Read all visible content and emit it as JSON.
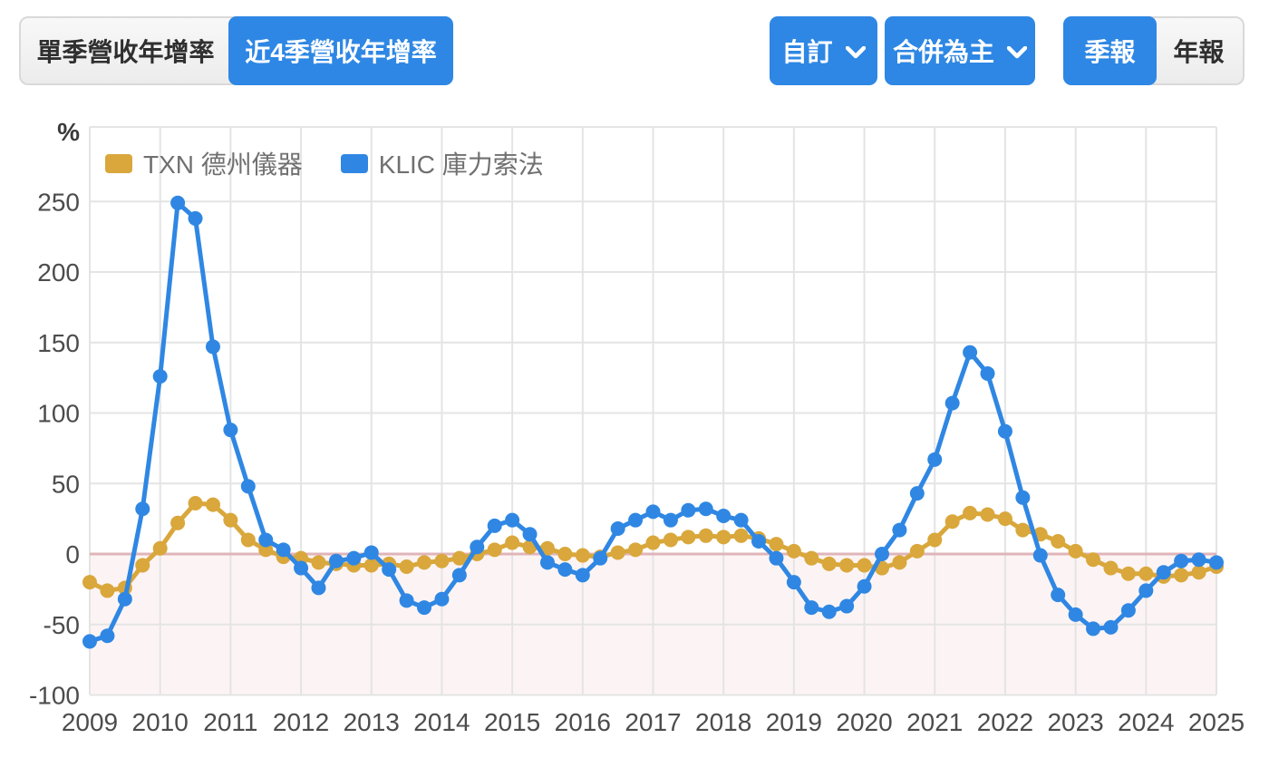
{
  "toolbar": {
    "left_tabs": [
      {
        "label": "單季營收年增率",
        "active": false
      },
      {
        "label": "近4季營收年增率",
        "active": true
      }
    ],
    "custom_dropdown_label": "自訂",
    "consolidated_dropdown_label": "合併為主",
    "period_tabs": [
      {
        "label": "季報",
        "active": true
      },
      {
        "label": "年報",
        "active": false
      }
    ]
  },
  "colors": {
    "accent_blue": "#2e87e4",
    "button_inactive_bg": "#f1f1f1",
    "button_border": "#d9d9d9",
    "button_inactive_text": "#2f2f2f"
  },
  "chart_data": {
    "type": "line",
    "title": "",
    "ylabel": "%",
    "x_start": "2009 Q1",
    "x_interval": "quarter",
    "x_tick_labels": [
      "2009",
      "2010",
      "2011",
      "2012",
      "2013",
      "2014",
      "2015",
      "2016",
      "2017",
      "2018",
      "2019",
      "2020",
      "2021",
      "2022",
      "2023",
      "2024",
      "2025"
    ],
    "y_ticks": [
      250,
      200,
      150,
      100,
      50,
      0,
      -50,
      -100
    ],
    "ylim": [
      -100,
      300
    ],
    "grid": true,
    "legend_position": "top-left",
    "grid_color": "#e4e4e4",
    "zero_line_color": "#dfb5b9",
    "below_zero_fill": "#fcf4f4",
    "axis_text_color": "#4c4c4c",
    "legend_text_color": "#707070",
    "series": [
      {
        "name": "TXN 德州儀器",
        "color": "#d9a73b",
        "values": [
          -20,
          -26,
          -24,
          -8,
          4,
          22,
          36,
          35,
          24,
          10,
          3,
          -2,
          -3,
          -6,
          -7,
          -8,
          -8,
          -7,
          -9,
          -6,
          -5,
          -3,
          0,
          3,
          8,
          5,
          4,
          0,
          -1,
          -2,
          1,
          3,
          8,
          10,
          12,
          13,
          12,
          13,
          11,
          7,
          2,
          -3,
          -7,
          -8,
          -8,
          -10,
          -6,
          2,
          10,
          23,
          29,
          28,
          25,
          17,
          14,
          9,
          2,
          -4,
          -10,
          -14,
          -14,
          -16,
          -15,
          -13,
          -9
        ]
      },
      {
        "name": "KLIC 庫力索法",
        "color": "#2f87e3",
        "values": [
          -62,
          -58,
          -32,
          32,
          126,
          249,
          238,
          147,
          88,
          48,
          10,
          3,
          -10,
          -24,
          -5,
          -3,
          1,
          -11,
          -33,
          -38,
          -32,
          -15,
          5,
          20,
          24,
          14,
          -6,
          -11,
          -15,
          -3,
          18,
          24,
          30,
          24,
          31,
          32,
          27,
          24,
          9,
          -3,
          -20,
          -38,
          -41,
          -37,
          -23,
          0,
          17,
          43,
          67,
          107,
          143,
          128,
          87,
          40,
          -1,
          -29,
          -43,
          -53,
          -52,
          -40,
          -26,
          -13,
          -5,
          -4,
          -6
        ]
      }
    ]
  }
}
